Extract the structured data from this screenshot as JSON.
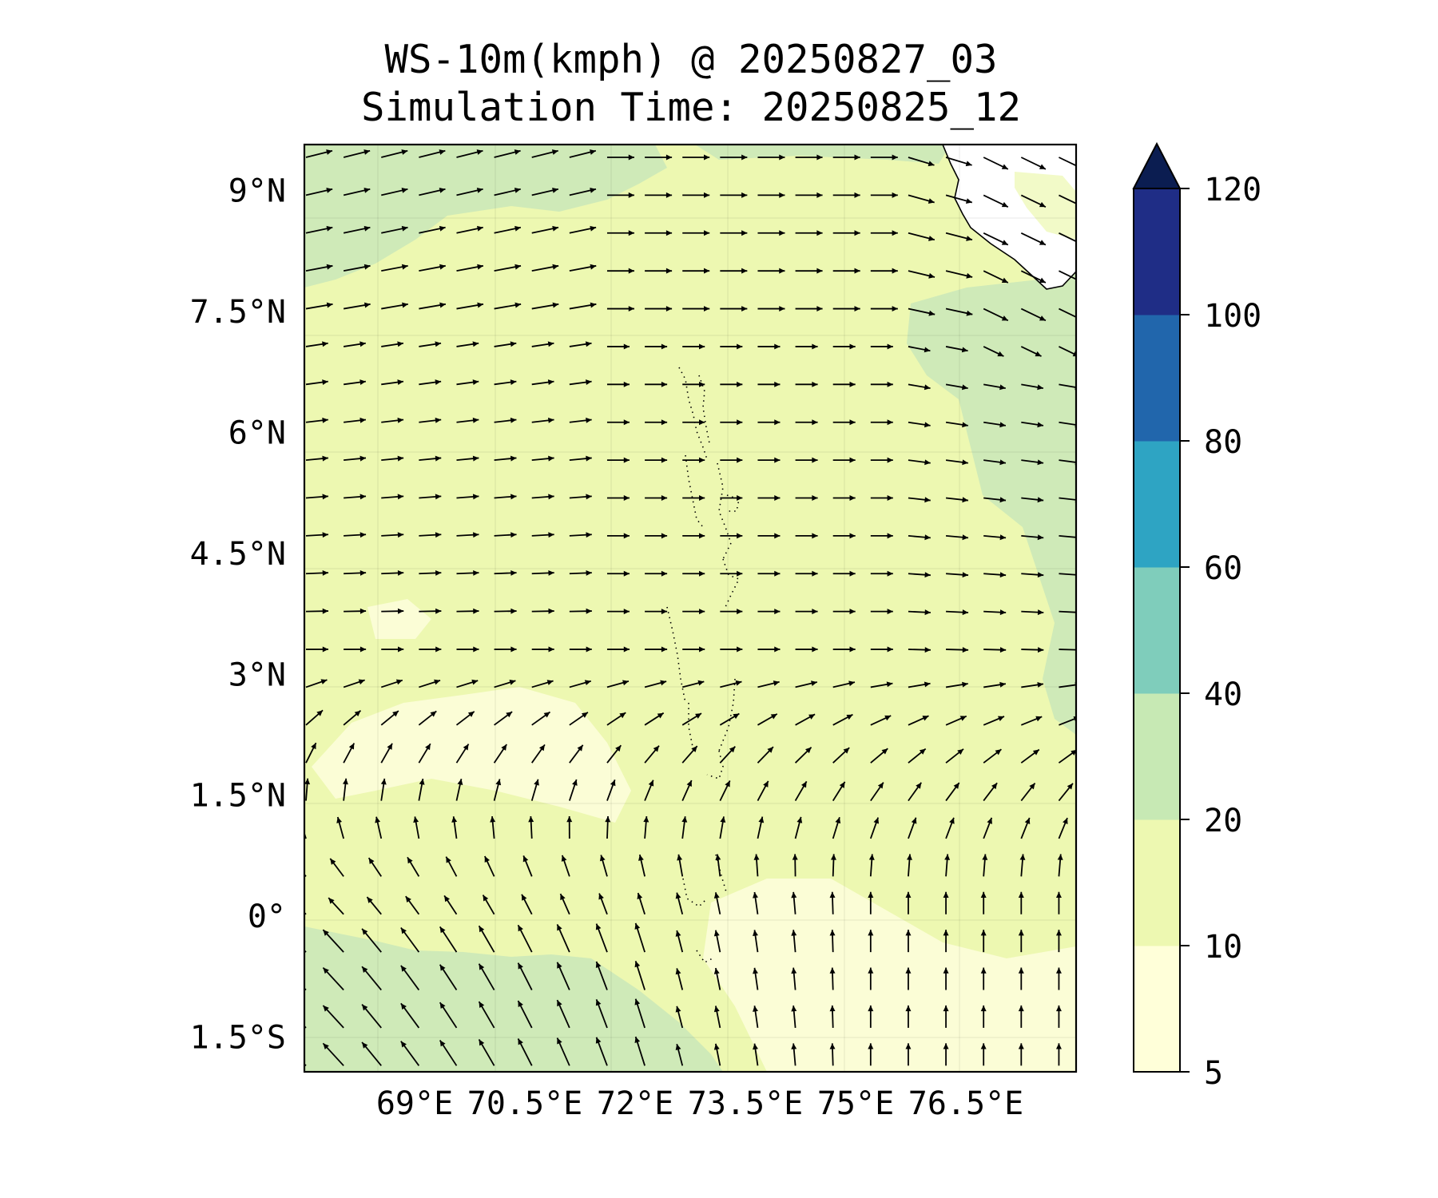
{
  "title": {
    "line1": "WS-10m(kmph) @ 20250827_03",
    "line2": "Simulation Time: 20250825_12"
  },
  "map": {
    "lon_range": [
      67.5,
      78.0
    ],
    "lat_range": [
      -1.95,
      9.55
    ],
    "lon_ticks": [
      {
        "value": 69.0,
        "label": "69°E"
      },
      {
        "value": 70.5,
        "label": "70.5°E"
      },
      {
        "value": 72.0,
        "label": "72°E"
      },
      {
        "value": 73.5,
        "label": "73.5°E"
      },
      {
        "value": 75.0,
        "label": "75°E"
      },
      {
        "value": 76.5,
        "label": "76.5°E"
      }
    ],
    "lat_ticks": [
      {
        "value": 9.0,
        "label": "9°N"
      },
      {
        "value": 7.5,
        "label": "7.5°N"
      },
      {
        "value": 6.0,
        "label": "6°N"
      },
      {
        "value": 4.5,
        "label": "4.5°N"
      },
      {
        "value": 3.0,
        "label": "3°N"
      },
      {
        "value": 1.5,
        "label": "1.5°N"
      },
      {
        "value": 0.0,
        "label": "0°"
      },
      {
        "value": -1.5,
        "label": "1.5°S"
      }
    ],
    "gridlines": true,
    "vector_field": "10 m wind vectors, westerly north of ~2.5°N, south-easterly in the south-west"
  },
  "colorbar": {
    "bounds": [
      5,
      10,
      20,
      40,
      60,
      80,
      100,
      120
    ],
    "tick_labels": [
      "5",
      "10",
      "20",
      "40",
      "60",
      "80",
      "100",
      "120"
    ],
    "colors": [
      "#ffffd9",
      "#edf8b1",
      "#c7e9b4",
      "#7fcdbb",
      "#2ea4c3",
      "#2166ac",
      "#1f2d86",
      "#0b1d51"
    ],
    "extend": "max"
  },
  "chart_data": {
    "type": "heatmap",
    "title": "WS-10m(kmph) @ 20250827_03 / Simulation Time: 20250825_12",
    "variable": "WS-10m(kmph)",
    "xlim": [
      67.5,
      78.0
    ],
    "ylim": [
      -1.95,
      9.55
    ],
    "levels": [
      5,
      10,
      20,
      40,
      60,
      80,
      100,
      120
    ],
    "regions": [
      {
        "area": "most of domain",
        "range": "10-20"
      },
      {
        "area": "north-west band (~8-9.5°N, 67.5-73°E)",
        "range": "20-40"
      },
      {
        "area": "east (~2-8°N, 76-78°E)",
        "range": "20-40"
      },
      {
        "area": "south-west (~2°S-0.5°S, 67.5-73°E)",
        "range": "20-40"
      },
      {
        "area": "central (~1-3°N, 68-72°E)",
        "range": "5-10"
      },
      {
        "area": "south-east (~1.5°S-0°, 74-78°E)",
        "range": "5-10"
      }
    ]
  }
}
